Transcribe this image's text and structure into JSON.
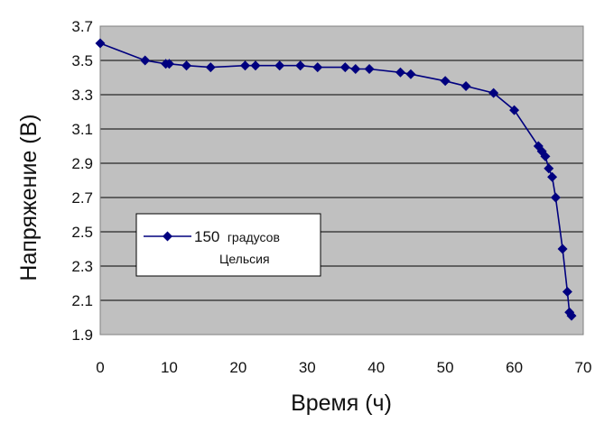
{
  "chart_data": {
    "type": "scatter",
    "xlabel": "Время (ч)",
    "ylabel": "Напряжение (В)",
    "xlim": [
      0,
      70
    ],
    "ylim": [
      1.9,
      3.7
    ],
    "xticks": [
      0,
      10,
      20,
      30,
      40,
      50,
      60,
      70
    ],
    "yticks": [
      "1.9",
      "2.1",
      "2.3",
      "2.5",
      "2.7",
      "2.9",
      "3.1",
      "3.3",
      "3.5",
      "3.7"
    ],
    "grid": "horizontal",
    "legend_position": "lower-left",
    "plot_background": "#c0c0c0",
    "series": [
      {
        "name": "150 градусов Цельсия",
        "legend_parts": [
          "150",
          "градусов",
          "Цельсия"
        ],
        "color": "#00007f",
        "marker": "diamond",
        "points": [
          [
            0,
            3.6
          ],
          [
            6.5,
            3.5
          ],
          [
            9.5,
            3.48
          ],
          [
            10,
            3.48
          ],
          [
            12.5,
            3.47
          ],
          [
            16,
            3.46
          ],
          [
            21,
            3.47
          ],
          [
            22.5,
            3.47
          ],
          [
            26,
            3.47
          ],
          [
            29,
            3.47
          ],
          [
            31.5,
            3.46
          ],
          [
            35.5,
            3.46
          ],
          [
            37,
            3.45
          ],
          [
            39,
            3.45
          ],
          [
            43.5,
            3.43
          ],
          [
            45,
            3.42
          ],
          [
            50,
            3.38
          ],
          [
            53,
            3.35
          ],
          [
            57,
            3.31
          ],
          [
            60,
            3.21
          ],
          [
            63.5,
            3.0
          ],
          [
            64,
            2.97
          ],
          [
            64.5,
            2.94
          ],
          [
            65,
            2.87
          ],
          [
            65.5,
            2.82
          ],
          [
            66,
            2.7
          ],
          [
            67,
            2.4
          ],
          [
            67.7,
            2.15
          ],
          [
            68,
            2.03
          ],
          [
            68.3,
            2.01
          ]
        ]
      }
    ]
  }
}
